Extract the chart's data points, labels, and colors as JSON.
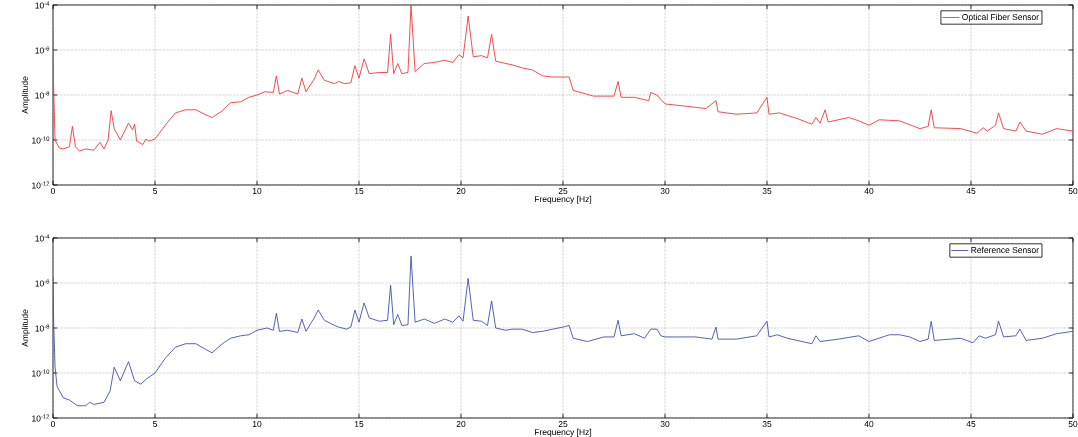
{
  "chart_data": [
    {
      "type": "line",
      "xlabel": "Frequency [Hz]",
      "ylabel": "Amplitude",
      "log": "y",
      "grid": true,
      "legend": "top right",
      "xlim": [
        0,
        50
      ],
      "xticks": [
        0,
        5,
        10,
        15,
        20,
        25,
        30,
        35,
        40,
        45,
        50
      ],
      "ylim": [
        1e-12,
        0.0001
      ],
      "yticks": [
        {
          "value": 1e-12,
          "label": "10$^{-12}$"
        },
        {
          "value": 1e-10,
          "label": "10$^{-10}$"
        },
        {
          "value": 1e-08,
          "label": "10$^{-8}$"
        },
        {
          "value": 1e-06,
          "label": "10$^{-6}$"
        },
        {
          "value": 0.0001,
          "label": "10$^{-4}$"
        }
      ],
      "x": [
        0,
        0.02,
        0.1,
        0.3,
        0.5,
        0.8,
        0.95,
        1.1,
        1.3,
        1.6,
        2.0,
        2.3,
        2.5,
        2.7,
        2.85,
        3.0,
        3.3,
        3.7,
        3.9,
        4.0,
        4.1,
        4.4,
        4.55,
        4.7,
        5.0,
        5.5,
        6.0,
        6.5,
        7.0,
        7.5,
        7.8,
        8.3,
        8.7,
        9.2,
        9.6,
        10.0,
        10.4,
        10.8,
        10.95,
        11.1,
        11.5,
        12.0,
        12.2,
        12.4,
        12.8,
        13.0,
        13.3,
        13.8,
        14.0,
        14.3,
        14.6,
        14.8,
        15.0,
        15.25,
        15.5,
        16.0,
        16.4,
        16.55,
        16.7,
        16.9,
        17.1,
        17.4,
        17.55,
        17.75,
        18.2,
        18.7,
        19.2,
        19.6,
        19.9,
        20.1,
        20.35,
        20.6,
        21.0,
        21.3,
        21.5,
        21.7,
        22.2,
        22.5,
        23.0,
        23.5,
        24.0,
        24.5,
        25.0,
        25.3,
        25.5,
        26.5,
        27.5,
        27.7,
        27.85,
        28.5,
        29.2,
        29.3,
        29.6,
        30.0,
        31.0,
        32.0,
        32.5,
        32.6,
        33.5,
        34.5,
        35.0,
        35.1,
        35.6,
        36.5,
        37.2,
        37.4,
        37.6,
        37.85,
        38.0,
        39.0,
        39.5,
        40.0,
        40.5,
        41.5,
        42.5,
        42.9,
        43.05,
        43.2,
        44.5,
        45.3,
        45.6,
        45.8,
        46.2,
        46.35,
        46.6,
        47.2,
        47.4,
        47.7,
        48.5,
        49.2,
        50.0
      ],
      "series": [
        {
          "name": "Optical Fiber Sensor",
          "color": "#f03a3a",
          "values": [
            7.9e-06,
            5e-08,
            1e-10,
            4.5e-11,
            4e-11,
            5e-11,
            4e-10,
            5e-11,
            3.2e-11,
            4e-11,
            3.5e-11,
            7.9e-11,
            4e-11,
            1e-10,
            2e-09,
            3.2e-10,
            1e-10,
            5.6e-10,
            2.8e-10,
            5e-10,
            8.9e-11,
            6.3e-11,
            1.1e-10,
            8.9e-11,
            1.1e-10,
            4.5e-10,
            1.6e-09,
            2.2e-09,
            2.2e-09,
            1.3e-09,
            1e-09,
            2e-09,
            4.5e-09,
            5e-09,
            7.9e-09,
            1e-08,
            1.4e-08,
            1.3e-08,
            7.1e-08,
            1.1e-08,
            1.6e-08,
            1.1e-08,
            5.6e-08,
            1.4e-08,
            5e-08,
            1.3e-07,
            4.5e-08,
            3.2e-08,
            4e-08,
            3.2e-08,
            3.5e-08,
            2e-07,
            5.6e-08,
            4e-07,
            8.9e-08,
            1e-07,
            1e-07,
            5e-06,
            8.9e-08,
            2.5e-07,
            8.9e-08,
            1e-07,
            0.0001,
            1.1e-07,
            2.5e-07,
            2.8e-07,
            3.5e-07,
            2.8e-07,
            6.3e-07,
            4.5e-07,
            3.2e-05,
            5e-07,
            5.6e-07,
            4.5e-07,
            5e-06,
            3.2e-07,
            2.5e-07,
            2.2e-07,
            1.6e-07,
            1.3e-07,
            7.1e-08,
            6.3e-08,
            6.3e-08,
            6.3e-08,
            1.6e-08,
            8.9e-09,
            8.9e-09,
            4e-08,
            7.9e-09,
            7.9e-09,
            5.6e-09,
            1.3e-08,
            1e-08,
            4e-09,
            3.2e-09,
            2.5e-09,
            5.6e-09,
            1.8e-09,
            1.4e-09,
            1.6e-09,
            7.9e-09,
            1.4e-09,
            1.6e-09,
            8.9e-10,
            5e-10,
            1e-09,
            5.6e-10,
            2.2e-09,
            6.3e-10,
            1e-09,
            7.1e-10,
            4.5e-10,
            7.9e-10,
            7.1e-10,
            3.2e-10,
            4e-10,
            2.2e-09,
            3.5e-10,
            3.2e-10,
            2e-10,
            3.5e-10,
            2.5e-10,
            4.5e-10,
            1.6e-09,
            3.2e-10,
            2.5e-10,
            6.3e-10,
            2.5e-10,
            1.8e-10,
            3.2e-10,
            2.5e-10
          ]
        }
      ]
    },
    {
      "type": "line",
      "xlabel": "Frequency [Hz]",
      "ylabel": "Amplitude",
      "log": "y",
      "grid": true,
      "legend": "top right",
      "xlim": [
        0,
        50
      ],
      "xticks": [
        0,
        5,
        10,
        15,
        20,
        25,
        30,
        35,
        40,
        45,
        50
      ],
      "ylim": [
        1e-12,
        0.0001
      ],
      "yticks": [
        {
          "value": 1e-12,
          "label": "10$^{-12}$"
        },
        {
          "value": 1e-10,
          "label": "10$^{-10}$"
        },
        {
          "value": 1e-08,
          "label": "10$^{-8}$"
        },
        {
          "value": 1e-06,
          "label": "10$^{-6}$"
        },
        {
          "value": 0.0001,
          "label": "10$^{-4}$"
        }
      ],
      "x": [
        0,
        0.03,
        0.1,
        0.2,
        0.5,
        0.8,
        1.2,
        1.6,
        1.8,
        2.0,
        2.5,
        2.8,
        3.0,
        3.3,
        3.7,
        4.0,
        4.3,
        4.6,
        5.0,
        5.5,
        6.0,
        6.5,
        7.0,
        7.5,
        7.8,
        8.3,
        8.7,
        9.2,
        9.6,
        10.0,
        10.5,
        10.8,
        10.95,
        11.1,
        11.5,
        12.0,
        12.2,
        12.4,
        12.8,
        13.0,
        13.3,
        13.8,
        14.0,
        14.4,
        14.6,
        14.8,
        15.0,
        15.25,
        15.5,
        16.0,
        16.4,
        16.55,
        16.7,
        16.9,
        17.1,
        17.4,
        17.55,
        17.75,
        18.2,
        18.7,
        19.2,
        19.6,
        19.9,
        20.1,
        20.35,
        20.6,
        21.0,
        21.3,
        21.5,
        21.7,
        22.2,
        22.5,
        23.0,
        23.5,
        24.0,
        24.5,
        25.0,
        25.3,
        25.5,
        26.2,
        27.0,
        27.5,
        27.7,
        27.85,
        28.5,
        29.0,
        29.3,
        29.6,
        29.8,
        30.0,
        31.5,
        32.3,
        32.5,
        32.6,
        33.5,
        34.5,
        35.0,
        35.1,
        35.5,
        36.0,
        37.2,
        37.4,
        37.6,
        38.5,
        39.5,
        40.0,
        41.0,
        41.5,
        42.0,
        42.5,
        42.9,
        43.05,
        43.2,
        44.5,
        45.1,
        45.4,
        45.7,
        46.2,
        46.35,
        46.6,
        47.2,
        47.4,
        47.7,
        48.5,
        49.2,
        50.0
      ],
      "series": [
        {
          "name": "Reference Sensor",
          "color": "#3f52b0",
          "values": [
            2e-06,
            2e-08,
            1.8e-10,
            2.5e-11,
            7.9e-12,
            6.3e-12,
            3.5e-12,
            3.5e-12,
            5e-12,
            4e-12,
            5e-12,
            1.6e-11,
            1.8e-10,
            4.5e-11,
            3.2e-10,
            4.5e-11,
            3.2e-11,
            5.6e-11,
            1e-10,
            4.5e-10,
            1.4e-09,
            2e-09,
            2e-09,
            1.1e-09,
            7.9e-10,
            2e-09,
            3.5e-09,
            4.5e-09,
            5e-09,
            7.9e-09,
            1e-08,
            7.9e-09,
            4.5e-08,
            7.1e-09,
            7.9e-09,
            6.3e-09,
            2.5e-08,
            7.1e-09,
            2.8e-08,
            6.3e-08,
            2.2e-08,
            1.3e-08,
            1.1e-08,
            8.9e-09,
            1.1e-08,
            6.3e-08,
            1.8e-08,
            1.3e-07,
            2.8e-08,
            2e-08,
            2.2e-08,
            7.9e-07,
            1.4e-08,
            4e-08,
            1.3e-08,
            1.4e-08,
            1.6e-05,
            1.8e-08,
            2.5e-08,
            1.6e-08,
            2.5e-08,
            1.8e-08,
            3.5e-08,
            2e-08,
            1.6e-06,
            2.2e-08,
            2e-08,
            1.3e-08,
            1.6e-07,
            1e-08,
            7.9e-09,
            8.9e-09,
            8.9e-09,
            6.3e-09,
            7.1e-09,
            8.9e-09,
            1.1e-08,
            1.3e-08,
            3.5e-09,
            2.5e-09,
            4e-09,
            4e-09,
            2.2e-08,
            4.5e-09,
            5.6e-09,
            3.5e-09,
            8.9e-09,
            8.9e-09,
            4.5e-09,
            4e-09,
            4e-09,
            3.2e-09,
            1.1e-08,
            3.2e-09,
            3.2e-09,
            4.5e-09,
            2e-08,
            4e-09,
            5e-09,
            3.5e-09,
            2e-09,
            4.5e-09,
            2.5e-09,
            3.2e-09,
            4.5e-09,
            2.5e-09,
            5e-09,
            5e-09,
            4e-09,
            2.5e-09,
            3.2e-09,
            2e-08,
            2.8e-09,
            3.5e-09,
            2.2e-09,
            4.5e-09,
            3.5e-09,
            5e-09,
            2e-08,
            4e-09,
            4.5e-09,
            8.9e-09,
            2.8e-09,
            3.5e-09,
            5.6e-09,
            7.1e-09
          ]
        }
      ]
    }
  ]
}
